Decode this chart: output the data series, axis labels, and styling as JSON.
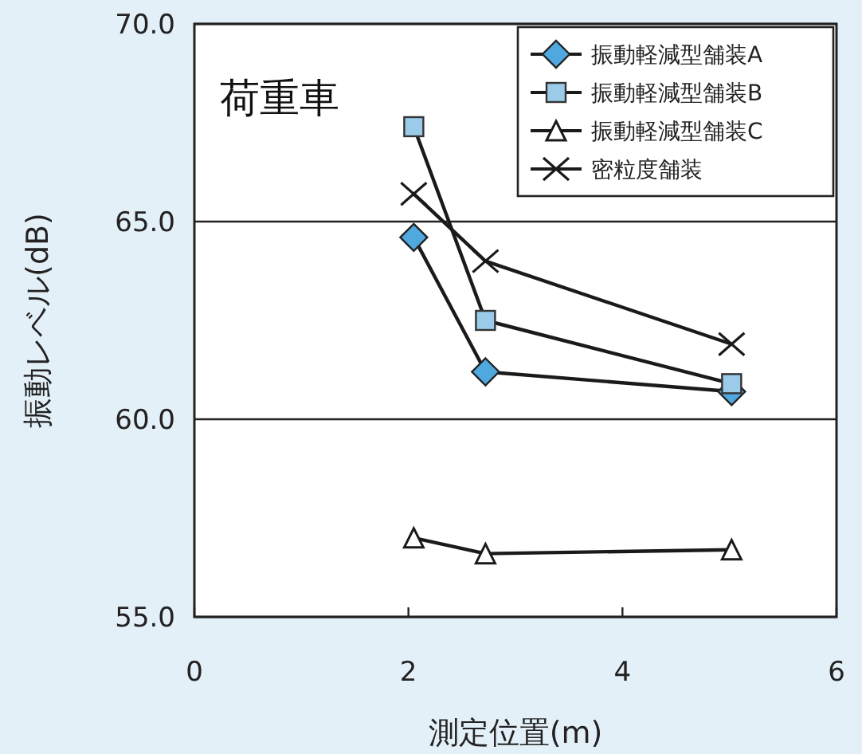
{
  "chart_data": {
    "type": "line",
    "title": "荷重車",
    "xlabel": "測定位置(m)",
    "ylabel": "振動レベル(dB)",
    "xlim": [
      0,
      6
    ],
    "xticks": [
      0,
      2,
      4,
      6
    ],
    "ylim": [
      55,
      70
    ],
    "yticks": [
      {
        "value": 55,
        "label": "55.0"
      },
      {
        "value": 60,
        "label": "60.0"
      },
      {
        "value": 65,
        "label": "65.0"
      },
      {
        "value": 70,
        "label": "70.0"
      }
    ],
    "grid": "y",
    "legend": "top right",
    "series": [
      {
        "name": "振動軽減型舗装A",
        "color": "#4fa9de",
        "marker": "diamond",
        "x": [
          2.05,
          2.72,
          5.02
        ],
        "values": [
          64.6,
          61.2,
          60.7
        ]
      },
      {
        "name": "振動軽減型舗装B",
        "color": "#9ccbea",
        "marker": "square",
        "x": [
          2.05,
          2.72,
          5.02
        ],
        "values": [
          67.4,
          62.5,
          60.9
        ]
      },
      {
        "name": "振動軽減型舗装C",
        "color": "#1a1a1a",
        "marker": "triangle",
        "x": [
          2.05,
          2.72,
          5.02
        ],
        "values": [
          57.0,
          56.6,
          56.7
        ]
      },
      {
        "name": "密粒度舗装",
        "color": "#1a1a1a",
        "marker": "cross",
        "x": [
          2.05,
          2.72,
          5.02
        ],
        "values": [
          65.7,
          64.0,
          61.9
        ]
      }
    ]
  }
}
